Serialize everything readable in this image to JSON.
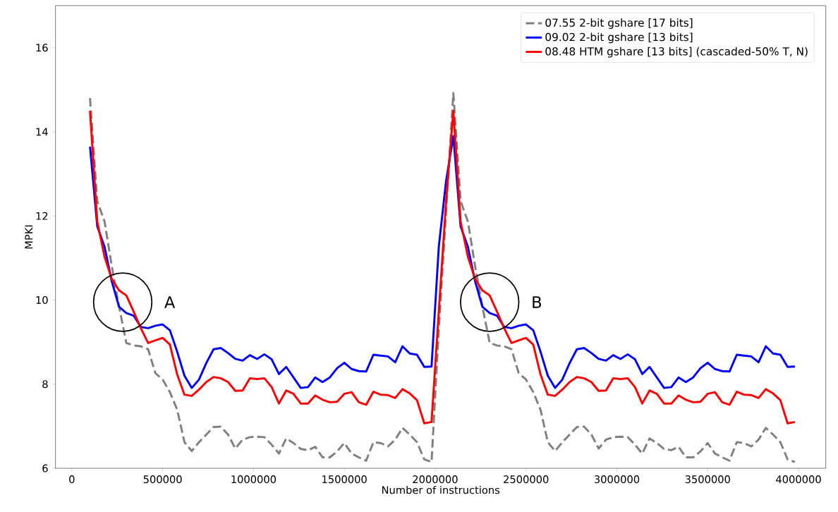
{
  "chart_data": {
    "type": "line",
    "xlabel": "Number of instructions",
    "ylabel": "MPKI",
    "x": [
      100000,
      140000,
      180000,
      220000,
      260000,
      300000,
      340000,
      380000,
      420000,
      460000,
      500000,
      540000,
      580000,
      620000,
      660000,
      700000,
      740000,
      780000,
      820000,
      860000,
      900000,
      940000,
      980000,
      1020000,
      1060000,
      1100000,
      1140000,
      1180000,
      1220000,
      1260000,
      1300000,
      1340000,
      1380000,
      1420000,
      1460000,
      1500000,
      1540000,
      1580000,
      1620000,
      1660000,
      1700000,
      1740000,
      1780000,
      1820000,
      1860000,
      1900000,
      1940000,
      1980000,
      2020000,
      2060000,
      2100000,
      2140000,
      2180000,
      2220000,
      2260000,
      2300000,
      2340000,
      2380000,
      2420000,
      2460000,
      2500000,
      2540000,
      2580000,
      2620000,
      2660000,
      2700000,
      2740000,
      2780000,
      2820000,
      2860000,
      2900000,
      2940000,
      2980000,
      3020000,
      3060000,
      3100000,
      3140000,
      3180000,
      3220000,
      3260000,
      3300000,
      3340000,
      3380000,
      3420000,
      3460000,
      3500000,
      3540000,
      3580000,
      3620000,
      3660000,
      3700000,
      3740000,
      3780000,
      3820000,
      3860000,
      3900000,
      3940000,
      3980000
    ],
    "series": [
      {
        "name": "07.55  2-bit gshare [17 bits]",
        "color": "#808080",
        "line_style": "dashed",
        "values": [
          14.8,
          12.35,
          11.87,
          10.8,
          9.84,
          8.98,
          8.92,
          8.9,
          8.83,
          8.26,
          8.11,
          7.81,
          7.39,
          6.62,
          6.41,
          6.62,
          6.8,
          6.98,
          6.99,
          6.8,
          6.47,
          6.68,
          6.74,
          6.75,
          6.74,
          6.56,
          6.35,
          6.71,
          6.6,
          6.46,
          6.43,
          6.51,
          6.26,
          6.26,
          6.4,
          6.6,
          6.35,
          6.26,
          6.18,
          6.62,
          6.6,
          6.52,
          6.68,
          6.96,
          6.8,
          6.62,
          6.21,
          6.15,
          9.3,
          12.1,
          14.92,
          12.35,
          11.87,
          10.8,
          9.84,
          8.98,
          8.92,
          8.9,
          8.83,
          8.26,
          8.11,
          7.81,
          7.39,
          6.62,
          6.41,
          6.62,
          6.8,
          6.98,
          6.99,
          6.8,
          6.47,
          6.68,
          6.74,
          6.75,
          6.74,
          6.56,
          6.35,
          6.71,
          6.6,
          6.46,
          6.43,
          6.51,
          6.26,
          6.26,
          6.4,
          6.6,
          6.35,
          6.26,
          6.18,
          6.62,
          6.6,
          6.52,
          6.68,
          6.96,
          6.8,
          6.62,
          6.21,
          6.15
        ]
      },
      {
        "name": "09.02  2-bit gshare [13 bits]",
        "color": "#0000ff",
        "line_style": "solid",
        "values": [
          13.65,
          11.75,
          11.27,
          10.44,
          9.84,
          9.69,
          9.63,
          9.36,
          9.33,
          9.39,
          9.42,
          9.28,
          8.77,
          8.2,
          7.91,
          8.11,
          8.5,
          8.83,
          8.86,
          8.74,
          8.6,
          8.56,
          8.69,
          8.6,
          8.71,
          8.59,
          8.24,
          8.41,
          8.16,
          7.91,
          7.93,
          8.16,
          8.05,
          8.16,
          8.38,
          8.51,
          8.36,
          8.31,
          8.3,
          8.7,
          8.68,
          8.66,
          8.52,
          8.9,
          8.73,
          8.7,
          8.41,
          8.42,
          11.27,
          12.83,
          13.9,
          11.75,
          11.27,
          10.44,
          9.84,
          9.69,
          9.63,
          9.36,
          9.33,
          9.39,
          9.42,
          9.28,
          8.77,
          8.2,
          7.91,
          8.11,
          8.5,
          8.83,
          8.86,
          8.74,
          8.6,
          8.56,
          8.69,
          8.6,
          8.71,
          8.59,
          8.24,
          8.41,
          8.16,
          7.91,
          7.93,
          8.16,
          8.05,
          8.16,
          8.38,
          8.51,
          8.36,
          8.31,
          8.3,
          8.7,
          8.68,
          8.66,
          8.52,
          8.9,
          8.73,
          8.7,
          8.41,
          8.42
        ]
      },
      {
        "name": "08.48  HTM gshare [13 bits] (cascaded-50% T, N)",
        "color": "#ff0000",
        "line_style": "solid",
        "values": [
          14.5,
          11.87,
          11.03,
          10.5,
          10.23,
          10.11,
          9.73,
          9.33,
          8.98,
          9.04,
          9.1,
          8.94,
          8.23,
          7.75,
          7.72,
          7.87,
          8.05,
          8.17,
          8.14,
          8.05,
          7.84,
          7.85,
          8.14,
          8.12,
          8.14,
          7.93,
          7.54,
          7.85,
          7.77,
          7.54,
          7.54,
          7.73,
          7.63,
          7.57,
          7.58,
          7.77,
          7.81,
          7.57,
          7.51,
          7.82,
          7.75,
          7.74,
          7.67,
          7.88,
          7.78,
          7.62,
          7.07,
          7.1,
          9.73,
          12.34,
          14.5,
          11.87,
          11.03,
          10.5,
          10.23,
          10.11,
          9.73,
          9.33,
          8.98,
          9.04,
          9.1,
          8.94,
          8.23,
          7.75,
          7.72,
          7.87,
          8.05,
          8.17,
          8.14,
          8.05,
          7.84,
          7.85,
          8.14,
          8.12,
          8.14,
          7.93,
          7.54,
          7.85,
          7.77,
          7.54,
          7.54,
          7.73,
          7.63,
          7.57,
          7.58,
          7.77,
          7.81,
          7.57,
          7.51,
          7.82,
          7.75,
          7.74,
          7.67,
          7.88,
          7.78,
          7.62,
          7.07,
          7.1
        ]
      }
    ],
    "annotations": [
      {
        "text": "A",
        "x": 280000,
        "y": 9.95
      },
      {
        "text": "B",
        "x": 2300000,
        "y": 9.95
      }
    ],
    "xlim": [
      -90000,
      4150000
    ],
    "ylim": [
      6,
      17
    ],
    "xticks": [
      0,
      500000,
      1000000,
      1500000,
      2000000,
      2500000,
      3000000,
      3500000,
      4000000
    ],
    "yticks": [
      6,
      8,
      10,
      12,
      14,
      16
    ],
    "grid": false,
    "legend": "top right",
    "marker": "none"
  }
}
